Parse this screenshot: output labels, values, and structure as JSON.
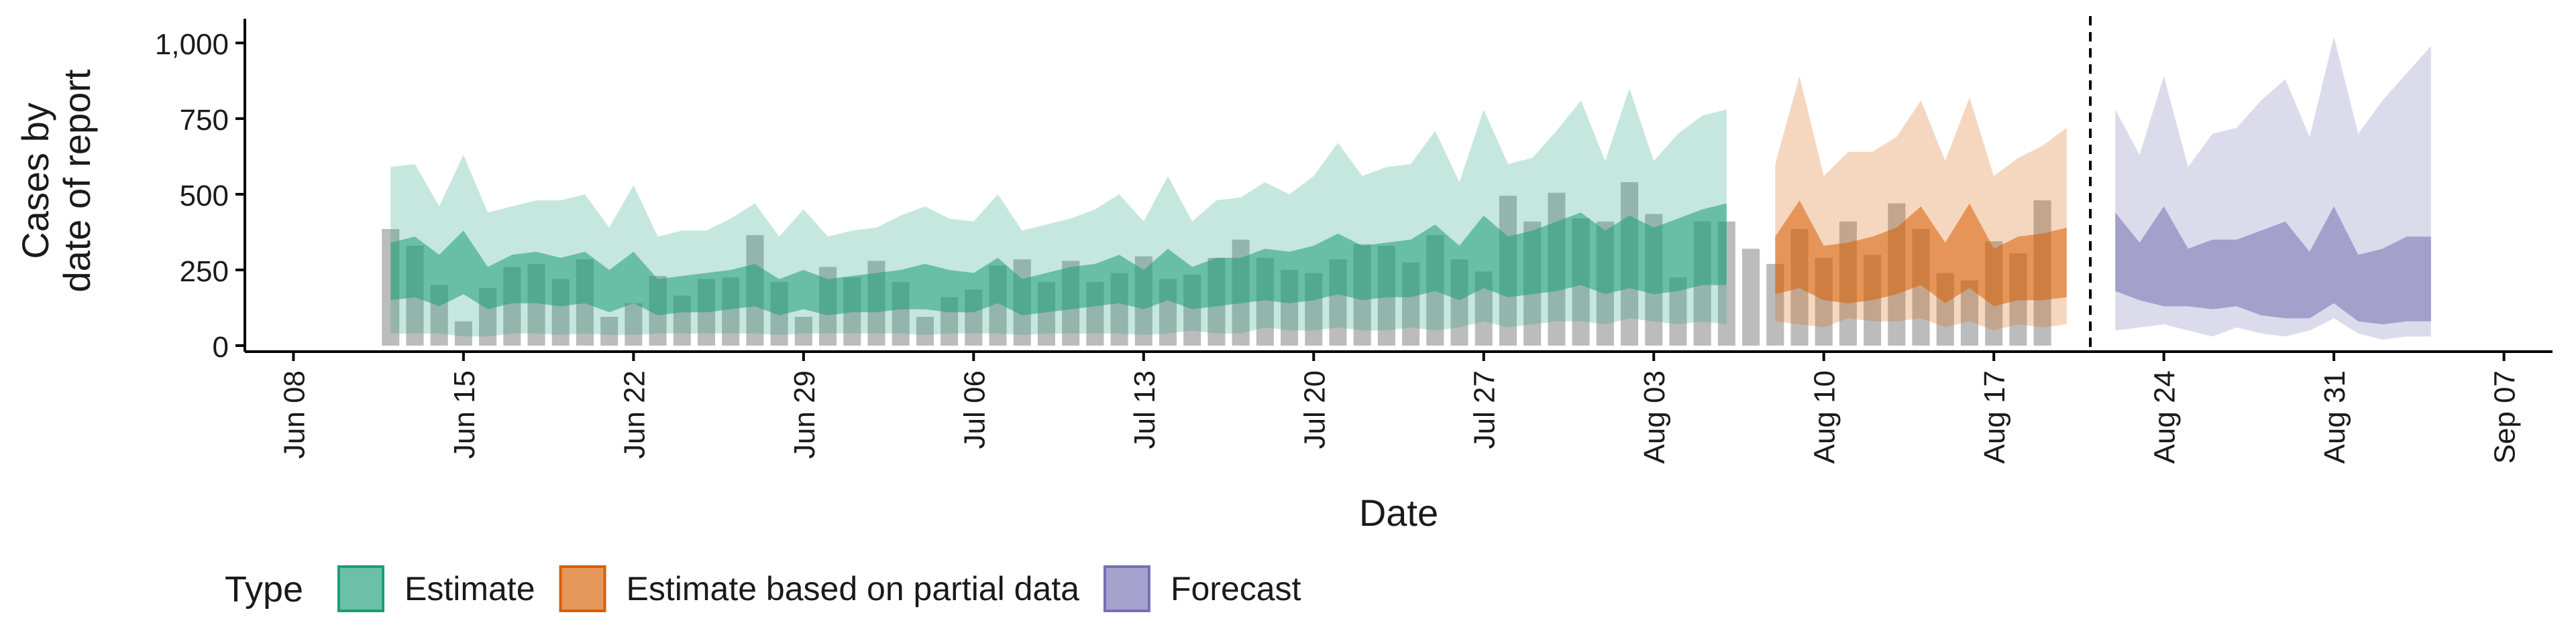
{
  "chart_data": {
    "type": "area",
    "xlabel": "Date",
    "ylabel": "Cases by\ndate of report",
    "x_range": [
      "2021-06-06",
      "2021-09-09"
    ],
    "ylim": [
      -20,
      1080
    ],
    "yticks": [
      0,
      250,
      500,
      750,
      1000
    ],
    "ytick_labels": [
      "0",
      "250",
      "500",
      "750",
      "1,000"
    ],
    "xticks": [
      "2021-06-08",
      "2021-06-15",
      "2021-06-22",
      "2021-06-29",
      "2021-07-06",
      "2021-07-13",
      "2021-07-20",
      "2021-07-27",
      "2021-08-03",
      "2021-08-10",
      "2021-08-17",
      "2021-08-24",
      "2021-08-31",
      "2021-09-07"
    ],
    "xtick_labels": [
      "Jun 08",
      "Jun 15",
      "Jun 22",
      "Jun 29",
      "Jul 06",
      "Jul 13",
      "Jul 20",
      "Jul 27",
      "Aug 03",
      "Aug 10",
      "Aug 17",
      "Aug 24",
      "Aug 31",
      "Sep 07"
    ],
    "grid": false,
    "legend_position": "bottom",
    "legend_title": "Type",
    "legend": [
      {
        "label": "Estimate",
        "color": "#1B9E77"
      },
      {
        "label": "Estimate based on partial data",
        "color": "#D95F02"
      },
      {
        "label": "Forecast",
        "color": "#7570B3"
      }
    ],
    "vline_date": "2021-08-21",
    "bar_color": "#a6a6a6",
    "reported_cases": {
      "start": "2021-06-12",
      "values": [
        385,
        330,
        200,
        80,
        190,
        260,
        270,
        220,
        285,
        95,
        140,
        230,
        165,
        220,
        225,
        365,
        210,
        95,
        260,
        225,
        280,
        210,
        95,
        160,
        185,
        265,
        285,
        210,
        280,
        210,
        240,
        295,
        220,
        235,
        290,
        350,
        290,
        250,
        240,
        285,
        335,
        330,
        275,
        365,
        285,
        245,
        495,
        410,
        505,
        420,
        410,
        540,
        435,
        225,
        410,
        410,
        320,
        270,
        385,
        290,
        410,
        300,
        470,
        385,
        240,
        215,
        345,
        305,
        480
      ]
    },
    "series": [
      {
        "name": "Estimate",
        "color": "#1B9E77",
        "start": "2021-06-12",
        "outer_upper": [
          590,
          600,
          460,
          630,
          440,
          460,
          480,
          480,
          500,
          390,
          530,
          360,
          380,
          380,
          420,
          470,
          360,
          450,
          360,
          380,
          390,
          430,
          460,
          420,
          410,
          500,
          380,
          400,
          420,
          450,
          500,
          410,
          560,
          410,
          480,
          490,
          540,
          500,
          560,
          670,
          560,
          590,
          600,
          710,
          540,
          780,
          600,
          620,
          710,
          810,
          610,
          850,
          610,
          700,
          760,
          780
        ],
        "outer_lower": [
          40,
          40,
          40,
          30,
          30,
          40,
          40,
          35,
          40,
          35,
          35,
          40,
          40,
          40,
          40,
          40,
          35,
          40,
          40,
          40,
          40,
          40,
          35,
          40,
          40,
          40,
          35,
          40,
          40,
          40,
          40,
          35,
          40,
          50,
          40,
          40,
          60,
          50,
          50,
          60,
          50,
          50,
          60,
          50,
          60,
          80,
          60,
          70,
          80,
          80,
          70,
          90,
          80,
          70,
          80,
          70
        ],
        "inner_upper": [
          340,
          360,
          300,
          380,
          260,
          300,
          310,
          290,
          310,
          250,
          310,
          220,
          230,
          240,
          250,
          270,
          220,
          250,
          220,
          230,
          240,
          250,
          270,
          250,
          240,
          290,
          220,
          240,
          260,
          270,
          300,
          250,
          320,
          260,
          290,
          290,
          320,
          310,
          330,
          370,
          330,
          340,
          350,
          400,
          330,
          430,
          360,
          380,
          410,
          440,
          380,
          430,
          390,
          420,
          450,
          470
        ],
        "inner_lower": [
          150,
          160,
          130,
          170,
          120,
          140,
          140,
          130,
          140,
          110,
          140,
          100,
          110,
          110,
          120,
          130,
          100,
          120,
          100,
          110,
          110,
          120,
          120,
          110,
          110,
          140,
          100,
          110,
          120,
          130,
          140,
          120,
          150,
          120,
          130,
          140,
          150,
          140,
          150,
          170,
          150,
          160,
          160,
          180,
          150,
          190,
          160,
          170,
          180,
          200,
          170,
          190,
          170,
          180,
          200,
          200
        ]
      },
      {
        "name": "Estimate based on partial data",
        "color": "#D95F02",
        "start": "2021-08-08",
        "outer_upper": [
          600,
          890,
          560,
          640,
          640,
          690,
          810,
          610,
          820,
          560,
          620,
          660,
          720
        ],
        "outer_lower": [
          80,
          70,
          60,
          90,
          80,
          80,
          90,
          60,
          80,
          50,
          70,
          60,
          70
        ],
        "inner_upper": [
          360,
          480,
          330,
          340,
          360,
          390,
          460,
          340,
          470,
          320,
          360,
          370,
          390
        ],
        "inner_lower": [
          170,
          190,
          150,
          140,
          150,
          170,
          200,
          140,
          190,
          130,
          150,
          150,
          160
        ]
      },
      {
        "name": "Forecast",
        "color": "#7570B3",
        "start": "2021-08-22",
        "outer_upper": [
          780,
          630,
          890,
          590,
          700,
          720,
          810,
          880,
          690,
          1020,
          700,
          810,
          900,
          990
        ],
        "outer_lower": [
          50,
          60,
          70,
          50,
          30,
          60,
          40,
          30,
          50,
          90,
          40,
          20,
          30,
          30
        ],
        "inner_upper": [
          440,
          340,
          460,
          320,
          350,
          350,
          380,
          410,
          310,
          460,
          300,
          320,
          360,
          360
        ],
        "inner_lower": [
          180,
          150,
          130,
          130,
          120,
          130,
          100,
          90,
          90,
          140,
          80,
          70,
          80,
          80
        ]
      }
    ]
  }
}
